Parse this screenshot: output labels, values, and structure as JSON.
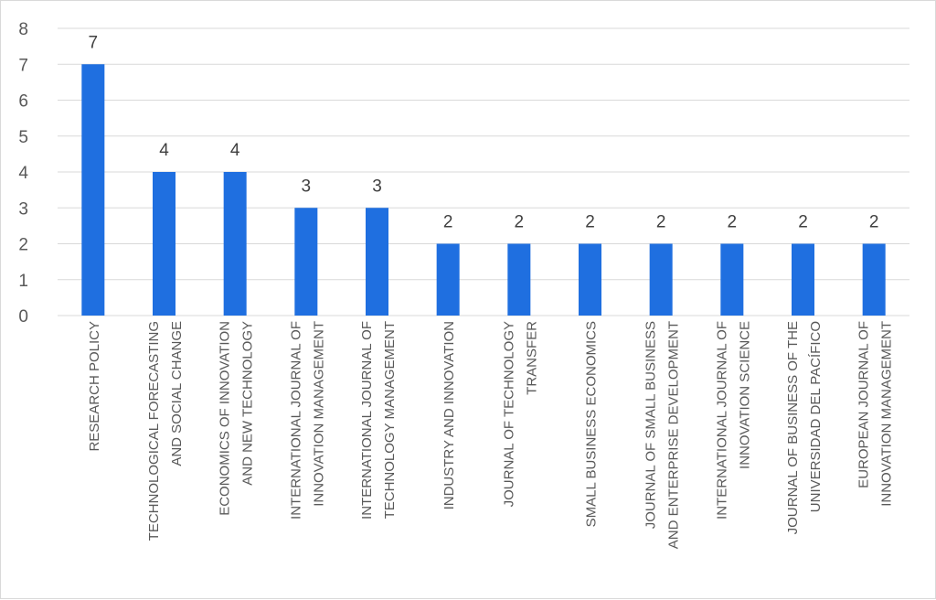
{
  "chart_data": {
    "type": "bar",
    "categories": [
      [
        "RESEARCH POLICY"
      ],
      [
        "TECHNOLOGICAL FORECASTING",
        "AND SOCIAL CHANGE"
      ],
      [
        "ECONOMICS OF INNOVATION",
        "AND NEW TECHNOLOGY"
      ],
      [
        "INTERNATIONAL JOURNAL OF",
        "INNOVATION MANAGEMENT"
      ],
      [
        "INTERNATIONAL JOURNAL OF",
        "TECHNOLOGY MANAGEMENT"
      ],
      [
        "INDUSTRY AND INNOVATION"
      ],
      [
        "JOURNAL OF TECHNOLOGY",
        "TRANSFER"
      ],
      [
        "SMALL BUSINESS ECONOMICS"
      ],
      [
        "JOURNAL OF SMALL BUSINESS",
        "AND ENTERPRISE DEVELOPMENT"
      ],
      [
        "INTERNATIONAL JOURNAL OF",
        "INNOVATION SCIENCE"
      ],
      [
        "JOURNAL OF BUSINESS OF THE",
        "UNIVERSIDAD DEL PACÍFICO"
      ],
      [
        "EUROPEAN JOURNAL OF",
        "INNOVATION MANAGEMENT"
      ]
    ],
    "values": [
      7,
      4,
      4,
      3,
      3,
      2,
      2,
      2,
      2,
      2,
      2,
      2
    ],
    "y_ticks": [
      "0",
      "1",
      "2",
      "3",
      "4",
      "5",
      "6",
      "7",
      "8"
    ],
    "ylim": [
      0,
      8
    ],
    "grid": true,
    "data_labels": true,
    "bar_color": "#1f6fe0",
    "grid_color": "#d9d9d9"
  }
}
